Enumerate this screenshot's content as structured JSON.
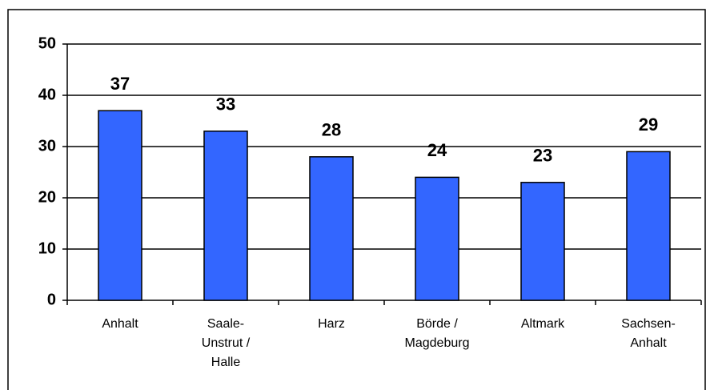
{
  "chart_data": {
    "type": "bar",
    "categories": [
      [
        "Anhalt"
      ],
      [
        "Saale-",
        "Unstrut /",
        "Halle"
      ],
      [
        "Harz"
      ],
      [
        "Börde /",
        "Magdeburg"
      ],
      [
        "Altmark"
      ],
      [
        "Sachsen-",
        "Anhalt"
      ]
    ],
    "values": [
      37,
      33,
      28,
      24,
      23,
      29
    ],
    "color": "#3366ff",
    "ylim": [
      0,
      50
    ],
    "yticks": [
      0,
      10,
      20,
      30,
      40,
      50
    ],
    "grid": true
  }
}
